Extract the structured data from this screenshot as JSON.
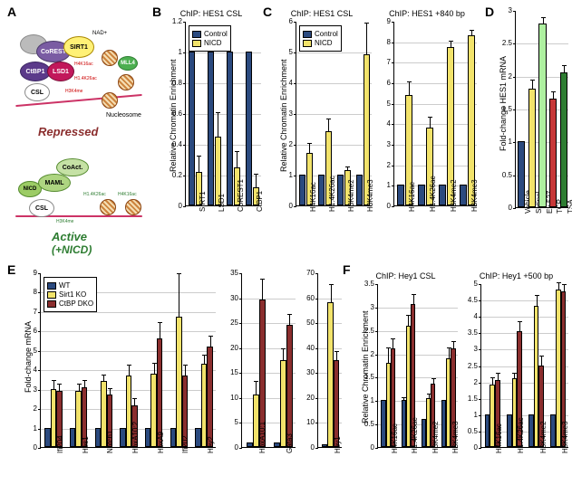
{
  "labels": {
    "A": "A",
    "B": "B",
    "C": "C",
    "D": "D",
    "E": "E",
    "F": "F"
  },
  "colors": {
    "control": "#2b4a7f",
    "nicd": "#f2e36b",
    "wt": "#2b4a7f",
    "sirt1ko": "#f2e36b",
    "ctbpdko": "#8b2e2e",
    "d_vehicle": "#2b4a7f",
    "d_sirtinol": "#f2e36b",
    "d_ex527": "#aef0a0",
    "d_tcp": "#c73838",
    "d_tsa": "#2e7d32",
    "bar_border": "#000000",
    "grid": "#cccccc"
  },
  "panelA": {
    "repressed_label": "Repressed",
    "active_label": "Active",
    "active_sub": "(+NICD)",
    "proteins": {
      "csl": "CSL",
      "sirt1": "SIRT1",
      "lsd1": "LSD1",
      "corest": "CoREST",
      "ctbp1": "CtBP1",
      "nicd": "NICD",
      "maml": "MAML",
      "coact": "CoAct.",
      "mll4": "MLL4"
    },
    "marks": {
      "h4k16ac": "H4K16ac",
      "h14k26ac": "H1.4K26ac",
      "h3k4me": "H3K4me",
      "nad": "NAD+"
    },
    "nucleosome": "Nucleosome"
  },
  "panelB": {
    "title": "ChIP: HES1 CSL",
    "ylabel": "Relative Chromatin Enrichment",
    "ylim": [
      0,
      1.2
    ],
    "ytick_step": 0.2,
    "categories": [
      "SIRT1",
      "LSD1",
      "CoREST1",
      "CtBP1"
    ],
    "series": [
      {
        "name": "Control",
        "color_key": "control",
        "values": [
          1,
          1,
          1,
          1
        ],
        "err": [
          0,
          0,
          0,
          0
        ]
      },
      {
        "name": "NICD",
        "color_key": "nicd",
        "values": [
          0.22,
          0.45,
          0.25,
          0.12
        ],
        "err": [
          0.1,
          0.15,
          0.1,
          0.08
        ]
      }
    ],
    "legend": [
      "Control",
      "NICD"
    ]
  },
  "panelC_left": {
    "title": "ChIP: HES1 CSL",
    "ylabel": "Relative Chromatin Enrichment",
    "ylim": [
      0,
      6
    ],
    "ytick_step": 1,
    "categories": [
      "H4K16ac",
      "H1.4K26ac",
      "H3K4me2",
      "H3K4me3"
    ],
    "series": [
      {
        "name": "Control",
        "color_key": "control",
        "values": [
          1,
          1,
          1,
          1
        ],
        "err": [
          0,
          0,
          0,
          0
        ]
      },
      {
        "name": "NICD",
        "color_key": "nicd",
        "values": [
          1.7,
          2.4,
          1.15,
          4.9
        ],
        "err": [
          0.3,
          0.4,
          0.1,
          1.0
        ]
      }
    ],
    "legend": [
      "Control",
      "NICD"
    ]
  },
  "panelC_right": {
    "title": "ChIP: HES1 +840 bp",
    "ylabel": "",
    "ylim": [
      0,
      9
    ],
    "ytick_step": 1,
    "categories": [
      "H4K16ac",
      "H1.4K26ac",
      "H3K4me2",
      "H3K4me3"
    ],
    "series": [
      {
        "name": "Control",
        "color_key": "control",
        "values": [
          1,
          1,
          1,
          1
        ],
        "err": [
          0,
          0,
          0,
          0
        ]
      },
      {
        "name": "NICD",
        "color_key": "nicd",
        "values": [
          5.4,
          3.8,
          7.7,
          8.3
        ],
        "err": [
          0.6,
          0.5,
          0.3,
          0.2
        ]
      }
    ]
  },
  "panelD": {
    "title": "",
    "ylabel": "Fold-change HES1 mRNA",
    "ylim": [
      0,
      3
    ],
    "ytick_step": 0.5,
    "categories": [
      "Vehicle",
      "Sirtinol",
      "Ex-527",
      "TCP",
      "TSA"
    ],
    "values": [
      1.0,
      1.8,
      2.8,
      1.65,
      2.05
    ],
    "colors": [
      "d_vehicle",
      "d_sirtinol",
      "d_ex527",
      "d_tcp",
      "d_tsa"
    ],
    "err": [
      0,
      0.12,
      0.08,
      0.1,
      0.1
    ]
  },
  "panelE_legend": [
    "WT",
    "Sirt1 KO",
    "CtBP DKO"
  ],
  "panelE_left": {
    "ylabel": "Fold-change mRNA",
    "ylim": [
      0,
      9
    ],
    "ytick_step": 1,
    "categories": [
      "Ifi204",
      "Hes1",
      "Notch1",
      "HoxA10:2",
      "HoxA9",
      "Ifi202",
      "Hey2"
    ],
    "series": [
      {
        "color_key": "wt",
        "values": [
          1,
          1,
          1,
          1,
          1,
          1,
          1
        ],
        "err": [
          0,
          0,
          0,
          0,
          0,
          0,
          0
        ]
      },
      {
        "color_key": "sirt1ko",
        "values": [
          3.0,
          2.9,
          3.4,
          3.7,
          3.8,
          6.7,
          4.3
        ],
        "err": [
          0.4,
          0.3,
          0.3,
          0.5,
          0.5,
          2.2,
          0.4
        ]
      },
      {
        "color_key": "ctbpdko",
        "values": [
          2.9,
          3.1,
          2.7,
          2.15,
          5.6,
          3.7,
          5.2
        ],
        "err": [
          0.3,
          0.3,
          0.3,
          0.3,
          0.8,
          0.5,
          0.5
        ]
      }
    ]
  },
  "panelE_mid": {
    "ylabel": "",
    "ylim": [
      0,
      35
    ],
    "ytick_step": 5,
    "categories": [
      "HoxA10:1",
      "Gata3"
    ],
    "series": [
      {
        "color_key": "wt",
        "values": [
          1,
          1
        ],
        "err": [
          0,
          0
        ]
      },
      {
        "color_key": "sirt1ko",
        "values": [
          10.5,
          17.5
        ],
        "err": [
          2.5,
          2
        ]
      },
      {
        "color_key": "ctbpdko",
        "values": [
          29.5,
          24.5
        ],
        "err": [
          4,
          2
        ]
      }
    ]
  },
  "panelE_right": {
    "ylabel": "",
    "ylim": [
      0,
      70
    ],
    "ytick_step": 10,
    "categories": [
      "Hey1"
    ],
    "series": [
      {
        "color_key": "wt",
        "values": [
          1
        ],
        "err": [
          0
        ]
      },
      {
        "color_key": "sirt1ko",
        "values": [
          58
        ],
        "err": [
          7
        ]
      },
      {
        "color_key": "ctbpdko",
        "values": [
          35
        ],
        "err": [
          3
        ]
      }
    ]
  },
  "panelF_left": {
    "title": "ChIP: Hey1 CSL",
    "ylabel": "Relative Chromatin Enrichment",
    "ylim": [
      0,
      3.5
    ],
    "ytick_step": 0.5,
    "categories": [
      "H4K16ac",
      "H1.4K26ac",
      "H3K4me2",
      "H3K4me3"
    ],
    "series": [
      {
        "color_key": "wt",
        "values": [
          1,
          1,
          0.6,
          1
        ],
        "err": [
          0,
          0.05,
          0,
          0
        ]
      },
      {
        "color_key": "sirt1ko",
        "values": [
          1.8,
          2.6,
          1.05,
          1.9
        ],
        "err": [
          0.3,
          0.2,
          0.08,
          0.2
        ]
      },
      {
        "color_key": "ctbpdko",
        "values": [
          2.1,
          3.05,
          1.35,
          2.1
        ],
        "err": [
          0.2,
          0.2,
          0.1,
          0.15
        ]
      }
    ]
  },
  "panelF_right": {
    "title": "ChIP: Hey1 +500 bp",
    "ylabel": "",
    "ylim": [
      0,
      5
    ],
    "ytick_step": 0.5,
    "categories": [
      "H4K16ac",
      "H1.4K26ac",
      "H3K4me2",
      "H3K4me3"
    ],
    "series": [
      {
        "color_key": "wt",
        "values": [
          1,
          1,
          1,
          1
        ],
        "err": [
          0,
          0,
          0,
          0
        ]
      },
      {
        "color_key": "sirt1ko",
        "values": [
          1.9,
          2.1,
          4.3,
          4.8
        ],
        "err": [
          0.2,
          0.15,
          0.3,
          0.2
        ]
      },
      {
        "color_key": "ctbpdko",
        "values": [
          2.05,
          3.55,
          2.5,
          4.75
        ],
        "err": [
          0.2,
          0.25,
          0.25,
          0.2
        ]
      }
    ]
  }
}
